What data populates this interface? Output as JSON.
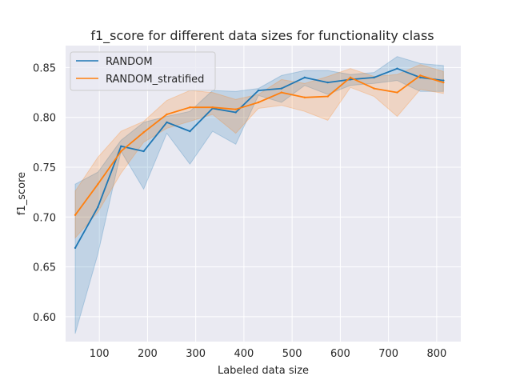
{
  "chart_data": {
    "type": "line",
    "title": "f1_score for different data sizes for functionality class",
    "xlabel": "Labeled data size",
    "ylabel": "f1_score",
    "xlim": [
      30,
      850
    ],
    "ylim": [
      0.575,
      0.872
    ],
    "xticks": [
      100,
      200,
      300,
      400,
      500,
      600,
      700,
      800
    ],
    "yticks": [
      0.6,
      0.65,
      0.7,
      0.75,
      0.8,
      0.85
    ],
    "grid": true,
    "legend_position": "top-left",
    "x": [
      50,
      97,
      145,
      192,
      240,
      288,
      335,
      383,
      430,
      478,
      526,
      574,
      621,
      670,
      718,
      766,
      814
    ],
    "series": [
      {
        "name": "RANDOM",
        "color": "#1f77b4",
        "values": [
          0.669,
          0.71,
          0.771,
          0.766,
          0.795,
          0.786,
          0.809,
          0.805,
          0.827,
          0.829,
          0.84,
          0.835,
          0.838,
          0.84,
          0.849,
          0.84,
          0.837
        ],
        "lower": [
          0.583,
          0.663,
          0.766,
          0.728,
          0.784,
          0.753,
          0.786,
          0.773,
          0.822,
          0.815,
          0.832,
          0.823,
          0.832,
          0.834,
          0.837,
          0.826,
          0.826
        ],
        "upper": [
          0.733,
          0.745,
          0.777,
          0.795,
          0.801,
          0.806,
          0.827,
          0.826,
          0.829,
          0.842,
          0.847,
          0.847,
          0.843,
          0.845,
          0.861,
          0.854,
          0.852
        ]
      },
      {
        "name": "RANDOM_stratified",
        "color": "#ff7f0e",
        "values": [
          0.702,
          0.733,
          0.766,
          0.785,
          0.803,
          0.81,
          0.81,
          0.808,
          0.815,
          0.825,
          0.82,
          0.821,
          0.84,
          0.829,
          0.825,
          0.842,
          0.835
        ],
        "lower": [
          0.679,
          0.705,
          0.744,
          0.775,
          0.789,
          0.796,
          0.803,
          0.784,
          0.809,
          0.812,
          0.806,
          0.797,
          0.83,
          0.821,
          0.801,
          0.828,
          0.824
        ],
        "upper": [
          0.726,
          0.76,
          0.786,
          0.796,
          0.817,
          0.827,
          0.825,
          0.818,
          0.823,
          0.838,
          0.834,
          0.841,
          0.849,
          0.841,
          0.843,
          0.853,
          0.846
        ]
      }
    ]
  }
}
